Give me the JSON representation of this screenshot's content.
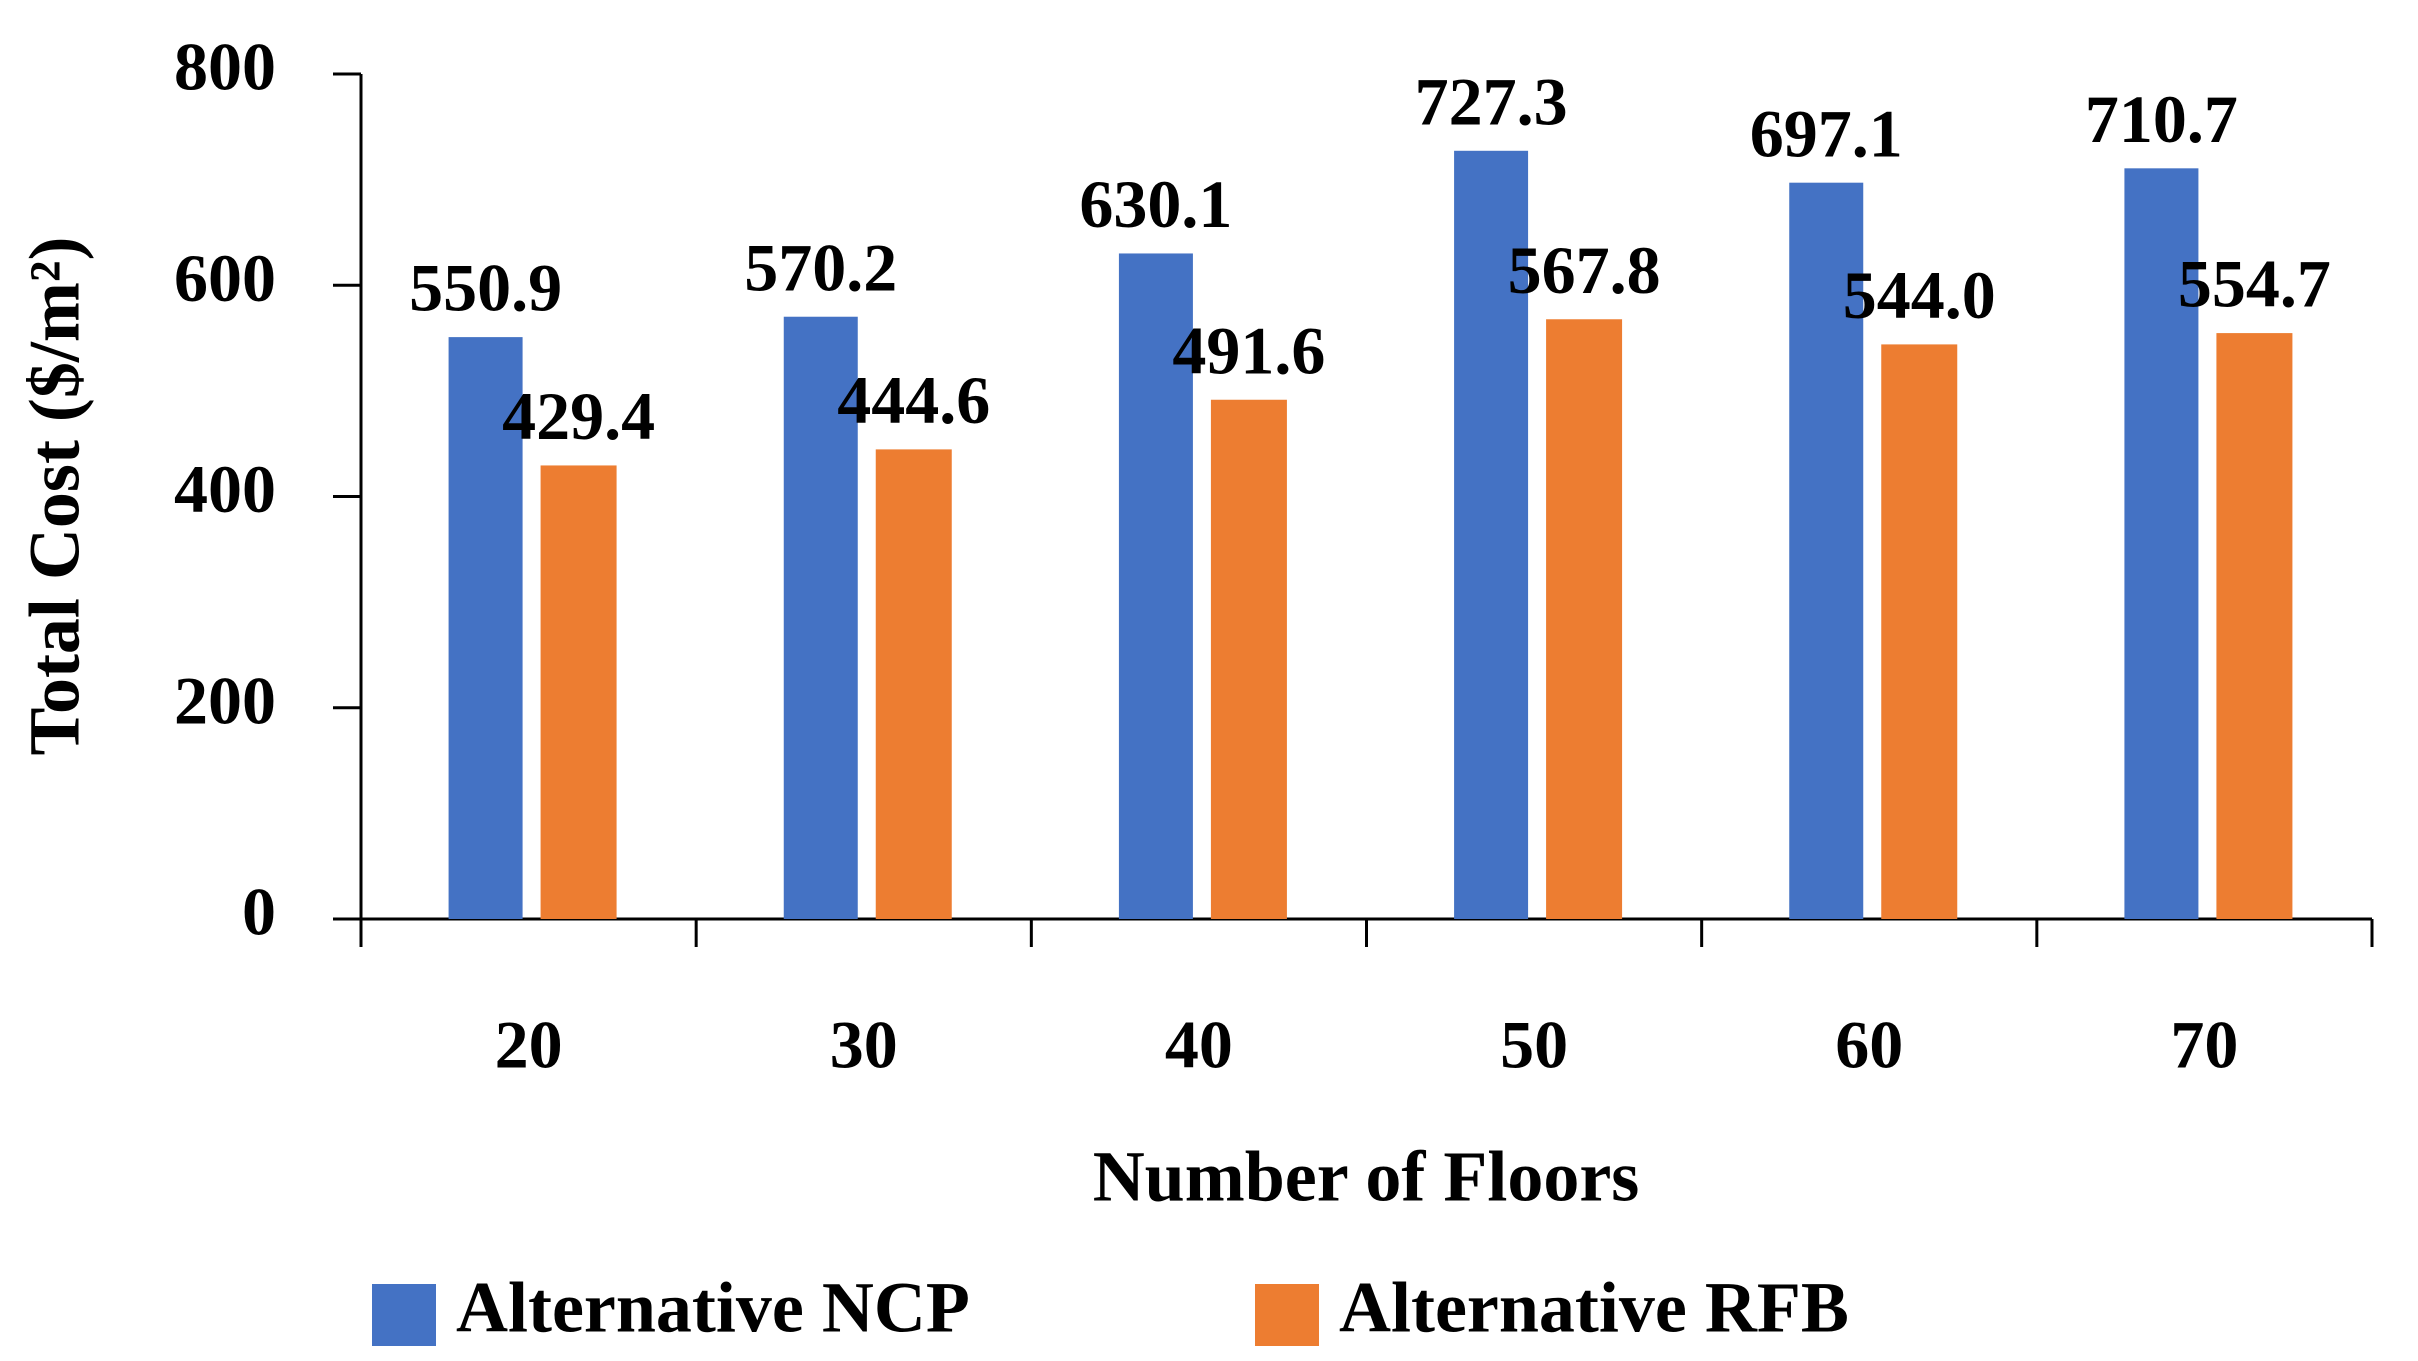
{
  "chart_data": {
    "type": "bar",
    "x_label": "Number of Floors",
    "y_label": "Total Cost ($/m²)",
    "categories": [
      "20",
      "30",
      "40",
      "50",
      "60",
      "70"
    ],
    "series": [
      {
        "name": "Alternative NCP",
        "color": "#4472c4",
        "values": [
          550.9,
          570.2,
          630.1,
          727.3,
          697.1,
          710.7
        ],
        "value_labels": [
          "550.9",
          "570.2",
          "630.1",
          "727.3",
          "697.1",
          "710.7"
        ]
      },
      {
        "name": "Alternative RFB",
        "color": "#ed7d31",
        "values": [
          429.4,
          444.6,
          491.6,
          567.8,
          544,
          554.7
        ],
        "value_labels": [
          "429.4",
          "444.6",
          "491.6",
          "567.8",
          "544.0",
          "554.7"
        ]
      }
    ],
    "ylim": [
      0,
      800
    ],
    "yticks": [
      0,
      200,
      400,
      600,
      800
    ],
    "legend": "bottom"
  }
}
